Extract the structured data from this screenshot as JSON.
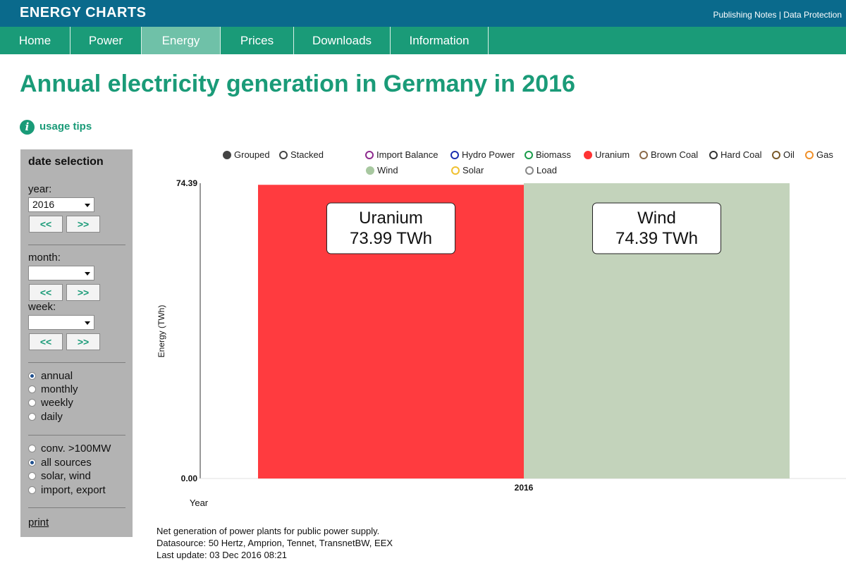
{
  "header": {
    "brand": "ENERGY CHARTS",
    "links": "Publishing Notes | Data Protection"
  },
  "nav": {
    "items": [
      {
        "label": "Home"
      },
      {
        "label": "Power"
      },
      {
        "label": "Energy",
        "active": true
      },
      {
        "label": "Prices"
      },
      {
        "label": "Downloads"
      },
      {
        "label": "Information"
      }
    ]
  },
  "page": {
    "title": "Annual electricity generation in Germany in 2016",
    "usage_tips": "usage tips",
    "info_icon": "info-icon"
  },
  "sidebar": {
    "title": "date selection",
    "year_label": "year:",
    "year_value": "2016",
    "month_label": "month:",
    "month_value": "",
    "week_label": "week:",
    "week_value": "",
    "prev_label": "<<",
    "next_label": ">>",
    "periods": [
      {
        "label": "annual",
        "checked": true
      },
      {
        "label": "monthly",
        "checked": false
      },
      {
        "label": "weekly",
        "checked": false
      },
      {
        "label": "daily",
        "checked": false
      }
    ],
    "sources": [
      {
        "label": "conv. >100MW",
        "checked": false
      },
      {
        "label": "all sources",
        "checked": true
      },
      {
        "label": "solar, wind",
        "checked": false
      },
      {
        "label": "import, export",
        "checked": false
      }
    ],
    "print_label": "print"
  },
  "legend": {
    "modes": [
      {
        "label": "Grouped",
        "filled": true,
        "color": "#444444"
      },
      {
        "label": "Stacked",
        "filled": false,
        "color": "#444444"
      }
    ],
    "sources": [
      {
        "label": "Import Balance",
        "color": "#8e2a8e",
        "filled": false
      },
      {
        "label": "Hydro Power",
        "color": "#1c2fb0",
        "filled": false
      },
      {
        "label": "Biomass",
        "color": "#1a9b4a",
        "filled": false
      },
      {
        "label": "Uranium",
        "color": "#ff3333",
        "filled": true
      },
      {
        "label": "Brown Coal",
        "color": "#8b6a4a",
        "filled": false
      },
      {
        "label": "Hard Coal",
        "color": "#333333",
        "filled": false
      },
      {
        "label": "Oil",
        "color": "#7a5a2a",
        "filled": false
      },
      {
        "label": "Gas",
        "color": "#f0902a",
        "filled": false
      },
      {
        "label": "Wind",
        "color": "#a8c8a0",
        "filled": true
      },
      {
        "label": "Solar",
        "color": "#f0c030",
        "filled": false
      },
      {
        "label": "Load",
        "color": "#888888",
        "filled": false
      }
    ]
  },
  "chart_data": {
    "type": "bar",
    "categories": [
      "2016"
    ],
    "series": [
      {
        "name": "Uranium",
        "values": [
          73.99
        ],
        "color": "#ff3b3f",
        "tooltip": [
          "Uranium",
          "73.99 TWh"
        ]
      },
      {
        "name": "Wind",
        "values": [
          74.39
        ],
        "color": "#c3d3bb",
        "tooltip": [
          "Wind",
          "74.39 TWh"
        ]
      }
    ],
    "xlabel": "Year",
    "ylabel": "Energy (TWh)",
    "ylim": [
      0,
      74.39
    ],
    "y_ticks": [
      "0.00",
      "74.39"
    ],
    "grid": false
  },
  "footer": {
    "line1": "Net generation of power plants for public power supply.",
    "line2": "Datasource: 50 Hertz, Amprion, Tennet, TransnetBW, EEX",
    "line3": "Last update: 03 Dec 2016 08:21"
  }
}
